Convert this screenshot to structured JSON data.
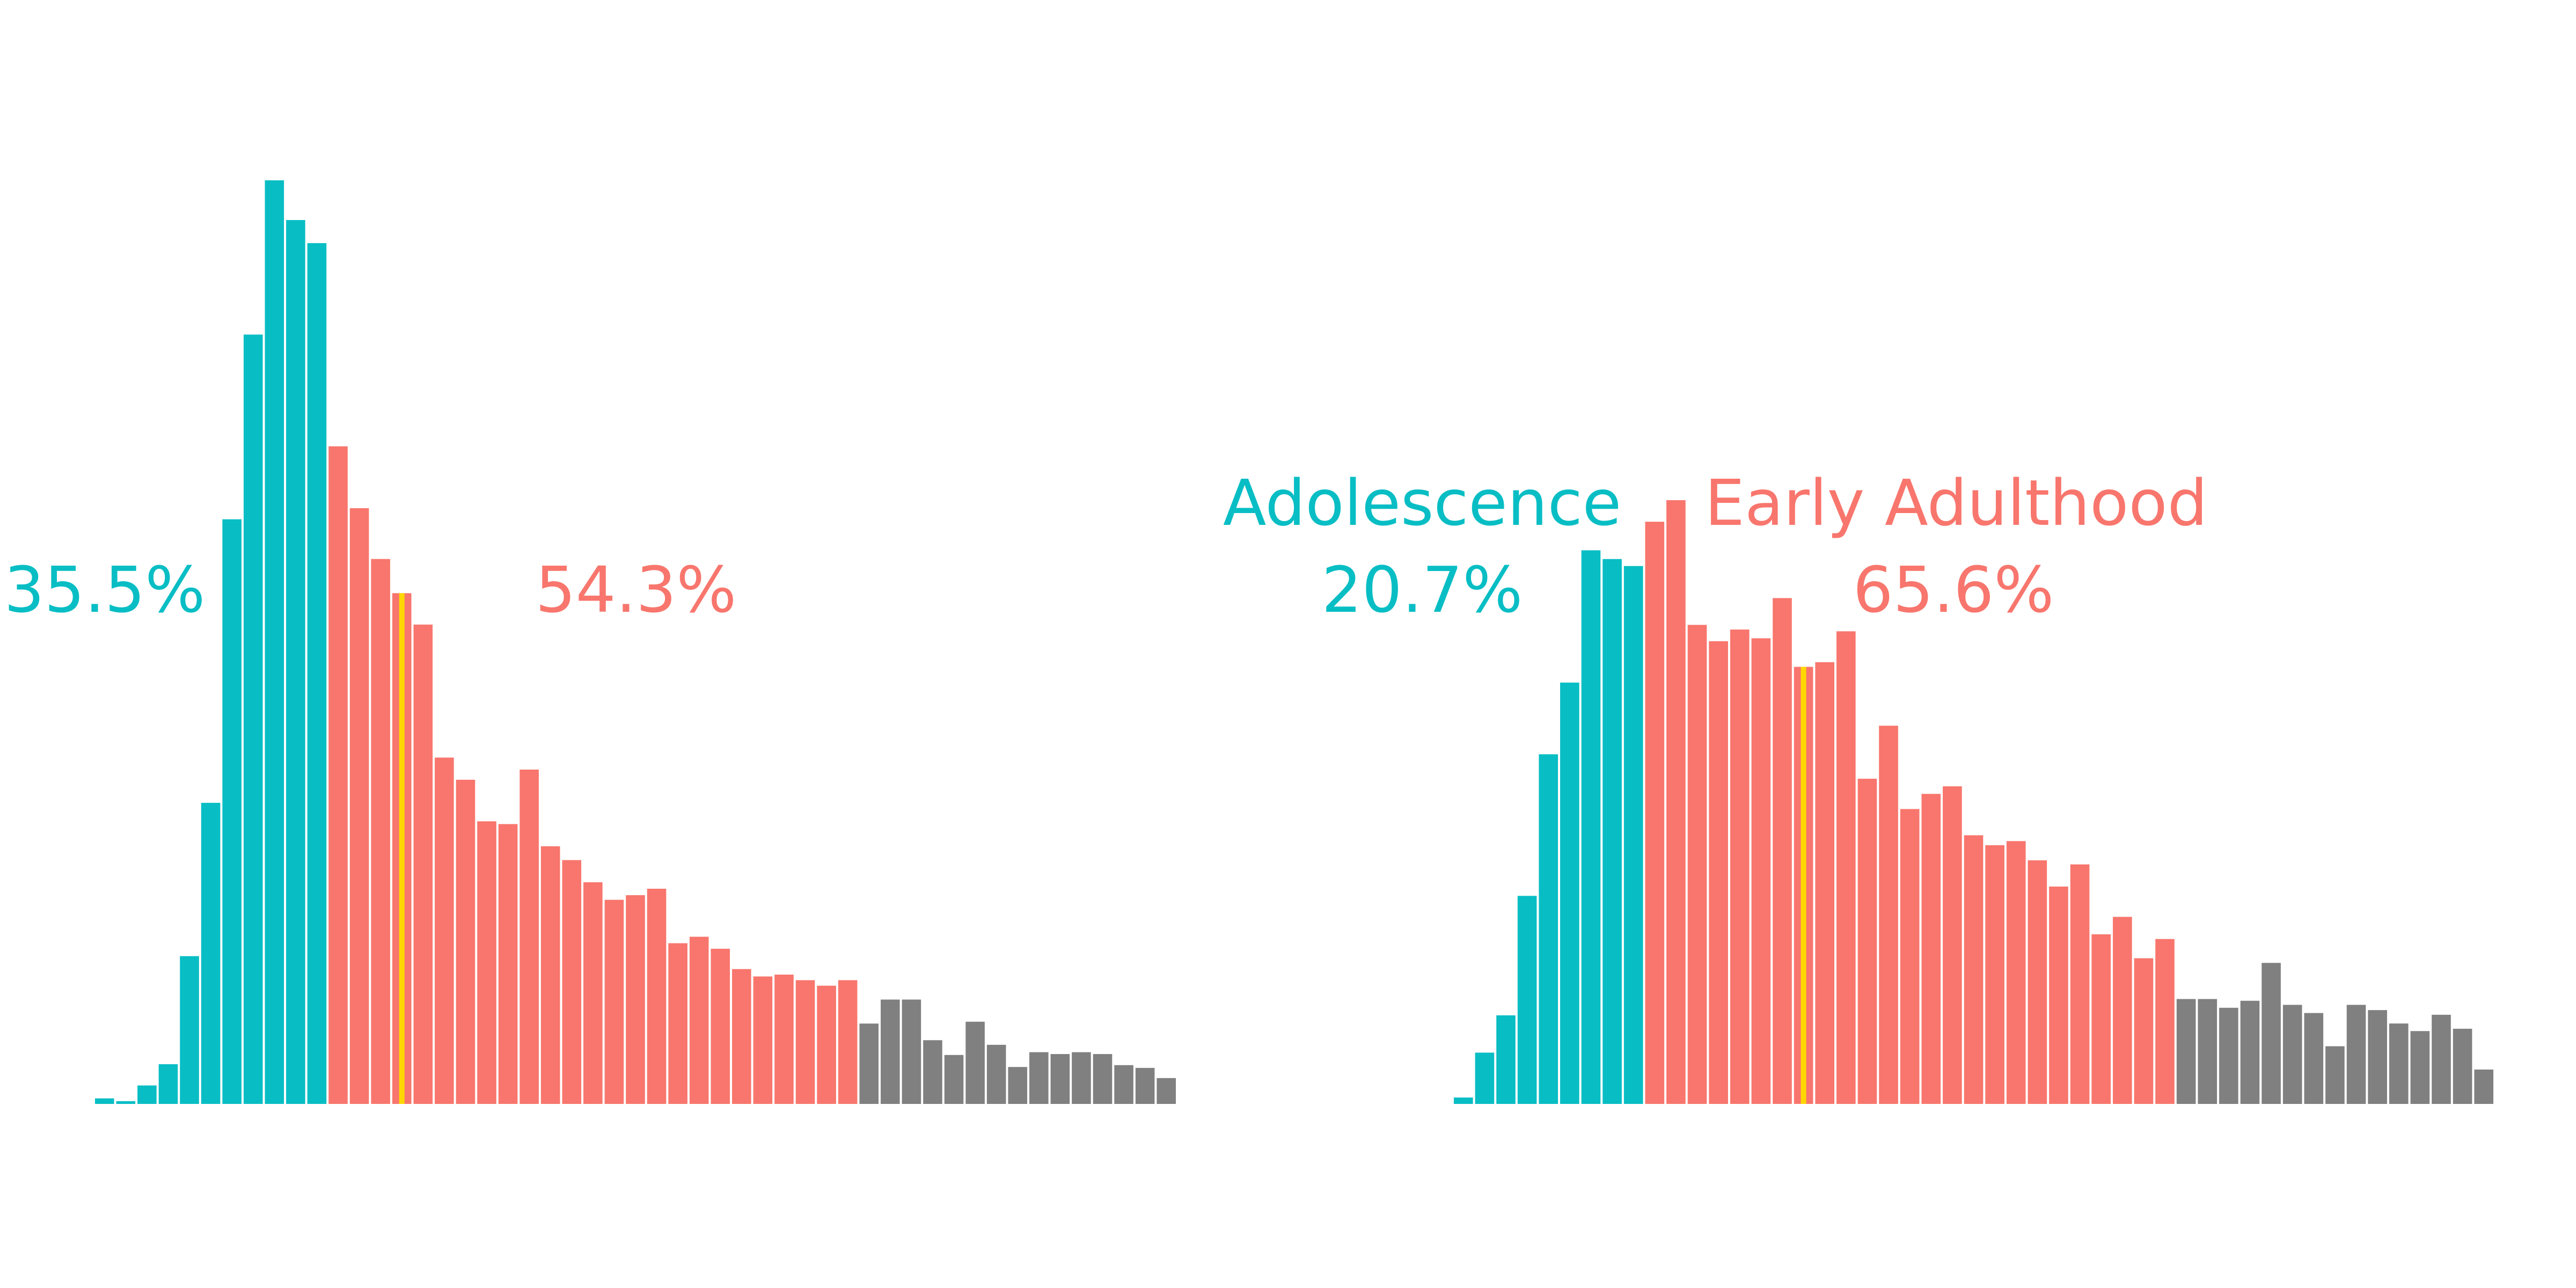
{
  "chart_data": [
    {
      "type": "bar",
      "title": "",
      "xlabel": "",
      "ylabel": "",
      "ylim": [
        0,
        1000
      ],
      "grid": false,
      "legend": "none",
      "colors": {
        "adolescence": "#08BEC4",
        "early_adulthood": "#F8766D",
        "other": "#808080",
        "marker": "#FFD700"
      },
      "group_labels": [],
      "annotations": [
        {
          "label": "35.5%",
          "group": "adolescence"
        },
        {
          "label": "54.3%",
          "group": "early_adulthood"
        }
      ],
      "marker_bin": 14,
      "values": [
        6,
        3,
        20,
        43,
        160,
        326,
        633,
        833,
        1000,
        957,
        932,
        712,
        645,
        590,
        553,
        519,
        375,
        351,
        306,
        303,
        362,
        279,
        264,
        240,
        221,
        226,
        233,
        174,
        181,
        168,
        146,
        138,
        140,
        134,
        128,
        134,
        87,
        113,
        113,
        69,
        53,
        89,
        64,
        40,
        56,
        54,
        56,
        54,
        42,
        39,
        28
      ],
      "groups": [
        "a",
        "a",
        "a",
        "a",
        "a",
        "a",
        "a",
        "a",
        "a",
        "a",
        "a",
        "e",
        "e",
        "e",
        "e",
        "e",
        "e",
        "e",
        "e",
        "e",
        "e",
        "e",
        "e",
        "e",
        "e",
        "e",
        "e",
        "e",
        "e",
        "e",
        "e",
        "e",
        "e",
        "e",
        "e",
        "e",
        "o",
        "o",
        "o",
        "o",
        "o",
        "o",
        "o",
        "o",
        "o",
        "o",
        "o",
        "o",
        "o",
        "o",
        "o"
      ]
    },
    {
      "type": "bar",
      "title": "",
      "xlabel": "",
      "ylabel": "",
      "ylim": [
        0,
        1000
      ],
      "grid": false,
      "legend": "none",
      "colors": {
        "adolescence": "#08BEC4",
        "early_adulthood": "#F8766D",
        "other": "#808080",
        "marker": "#FFD700"
      },
      "group_labels": [
        {
          "label": "Adolescence",
          "group": "adolescence"
        },
        {
          "label": "Early Adulthood",
          "group": "early_adulthood"
        }
      ],
      "annotations": [
        {
          "label": "20.7%",
          "group": "adolescence"
        },
        {
          "label": "65.6%",
          "group": "early_adulthood"
        }
      ],
      "marker_bin": 16,
      "values": [
        11,
        88,
        152,
        357,
        600,
        723,
        950,
        935,
        923,
        999,
        1036,
        822,
        794,
        814,
        799,
        868,
        750,
        758,
        811,
        558,
        649,
        506,
        532,
        545,
        461,
        444,
        451,
        418,
        373,
        411,
        291,
        321,
        250,
        283,
        180,
        180,
        165,
        177,
        242,
        170,
        156,
        99,
        170,
        161,
        138,
        125,
        153,
        129,
        59
      ],
      "groups": [
        "a",
        "a",
        "a",
        "a",
        "a",
        "a",
        "a",
        "a",
        "a",
        "e",
        "e",
        "e",
        "e",
        "e",
        "e",
        "e",
        "e",
        "e",
        "e",
        "e",
        "e",
        "e",
        "e",
        "e",
        "e",
        "e",
        "e",
        "e",
        "e",
        "e",
        "e",
        "e",
        "e",
        "e",
        "o",
        "o",
        "o",
        "o",
        "o",
        "o",
        "o",
        "o",
        "o",
        "o",
        "o",
        "o",
        "o",
        "o",
        "o"
      ]
    }
  ]
}
